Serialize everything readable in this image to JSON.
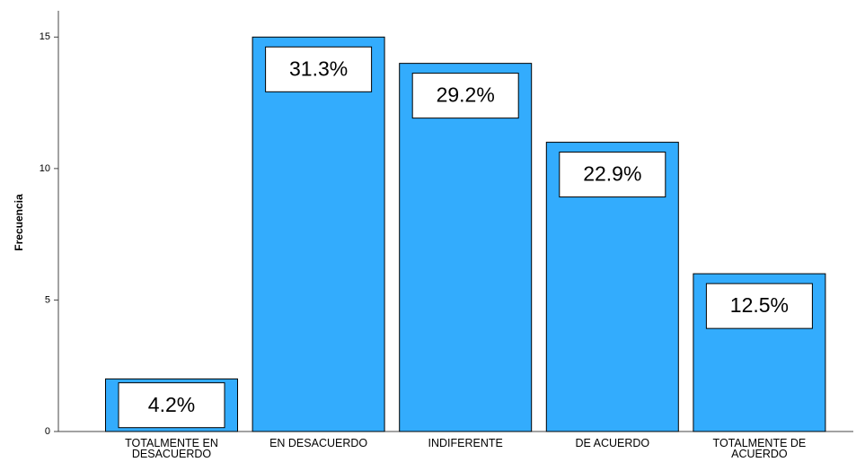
{
  "chart_data": {
    "type": "bar",
    "y_label": "Frecuencia",
    "categories": [
      "TOTALMENTE EN DESACUERDO",
      "EN DESACUERDO",
      "INDIFERENTE",
      "DE ACUERDO",
      "TOTALMENTE DE ACUERDO"
    ],
    "values": [
      2,
      15,
      14,
      11,
      6
    ],
    "percent_values": [
      4.2,
      31.3,
      29.2,
      22.9,
      12.5
    ],
    "percent_labels": [
      "4.2%",
      "31.3%",
      "29.2%",
      "22.9%",
      "12.5%"
    ],
    "color": "#33acfd",
    "ylim": [
      0,
      16
    ],
    "yticks": [
      0,
      5,
      10,
      15
    ],
    "grid": false
  }
}
